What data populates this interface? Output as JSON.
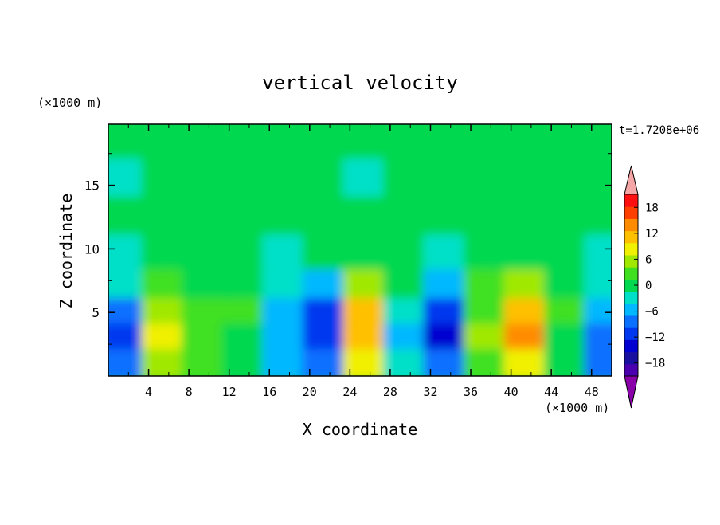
{
  "chart_data": {
    "type": "heatmap",
    "title": "vertical velocity",
    "xlabel": "X coordinate",
    "ylabel": "Z coordinate",
    "x_unit": "(×1000 m)",
    "z_unit": "(×1000 m)",
    "time_label": "t=1.7208e+06",
    "xlim": [
      0,
      50
    ],
    "zlim": [
      0,
      19.8
    ],
    "x_ticks": [
      "4",
      "8",
      "12",
      "16",
      "20",
      "24",
      "28",
      "32",
      "36",
      "40",
      "44",
      "48"
    ],
    "z_ticks": [
      "5",
      "10",
      "15"
    ],
    "colorbar": {
      "levels": [
        -21,
        -18,
        -15,
        -12,
        -9,
        -6,
        -3,
        0,
        3,
        6,
        9,
        12,
        15,
        18,
        21
      ],
      "tick_labels": [
        "18",
        "12",
        "6",
        "0",
        "-6",
        "-12",
        "-18"
      ],
      "colors": [
        "#8a00a8",
        "#4b00b0",
        "#1a10a0",
        "#0000d0",
        "#0038f0",
        "#0a70ff",
        "#00b8ff",
        "#00e0c8",
        "#00d850",
        "#40e020",
        "#a0e800",
        "#f0f000",
        "#ffc000",
        "#ff8c00",
        "#ff4000",
        "#ff1010",
        "#f4a6a6"
      ]
    },
    "cells": {
      "x": [
        2,
        6,
        10,
        14,
        18,
        22,
        26,
        30,
        34,
        38,
        42,
        46,
        50
      ],
      "note_rows_z": [
        1.5,
        3.5,
        5.5,
        7.5,
        10,
        13,
        16,
        19
      ],
      "rows": [
        [
          -8,
          8,
          3,
          1,
          -4,
          -9,
          10,
          -2,
          -9,
          4,
          11,
          1,
          -7
        ],
        [
          -11,
          10,
          5,
          2,
          -6,
          -12,
          14,
          -4,
          -13,
          6,
          16,
          2,
          -9
        ],
        [
          -8,
          8,
          4,
          3,
          -5,
          -10,
          12,
          -3,
          -11,
          5,
          14,
          3,
          -6
        ],
        [
          -3,
          4,
          2,
          1,
          -2,
          -4,
          6,
          0,
          -5,
          3,
          7,
          1,
          -2
        ],
        [
          -1,
          1,
          0,
          1,
          -1,
          0,
          2,
          1,
          -1,
          1,
          2,
          0,
          -1
        ],
        [
          0,
          2,
          1,
          0,
          1,
          0,
          1,
          0,
          2,
          1,
          0,
          1,
          1
        ],
        [
          -1,
          1,
          0,
          1,
          0,
          1,
          -1,
          1,
          0,
          2,
          1,
          0,
          1
        ],
        [
          1,
          0,
          2,
          1,
          1,
          0,
          1,
          2,
          1,
          0,
          2,
          1,
          1
        ]
      ]
    }
  }
}
